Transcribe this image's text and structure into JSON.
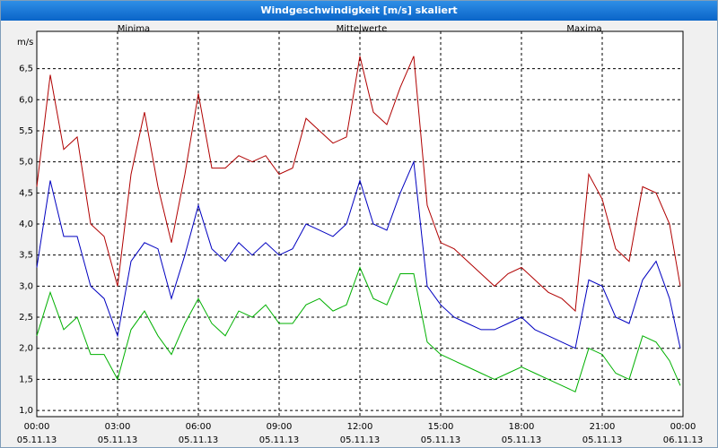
{
  "window": {
    "title": "Windgeschwindigkeit [m/s] skaliert"
  },
  "chart_data": {
    "type": "line",
    "ylabel": "m/s",
    "ylim": [
      0.9,
      7.1
    ],
    "yticks": [
      "1,0",
      "1,5",
      "2,0",
      "2,5",
      "3,0",
      "3,5",
      "4,0",
      "4,5",
      "5,0",
      "5,5",
      "6,0",
      "6,5"
    ],
    "xticks": [
      {
        "time": "00:00",
        "date": "05.11.13"
      },
      {
        "time": "03:00",
        "date": "05.11.13"
      },
      {
        "time": "06:00",
        "date": "05.11.13"
      },
      {
        "time": "09:00",
        "date": "05.11.13"
      },
      {
        "time": "12:00",
        "date": "05.11.13"
      },
      {
        "time": "15:00",
        "date": "05.11.13"
      },
      {
        "time": "18:00",
        "date": "05.11.13"
      },
      {
        "time": "21:00",
        "date": "05.11.13"
      },
      {
        "time": "00:00",
        "date": "06.11.13"
      }
    ],
    "x_hours": [
      0,
      0.5,
      1,
      1.5,
      2,
      2.5,
      3,
      3.5,
      4,
      4.5,
      5,
      5.5,
      6,
      6.5,
      7,
      7.5,
      8,
      8.5,
      9,
      9.5,
      10,
      10.5,
      11,
      11.5,
      12,
      12.5,
      13,
      13.5,
      14,
      14.5,
      15,
      15.5,
      16,
      16.5,
      17,
      17.5,
      18,
      18.5,
      19,
      19.5,
      20,
      20.5,
      21,
      21.5,
      22,
      22.5,
      23,
      23.5,
      23.9
    ],
    "grid": true,
    "series": [
      {
        "name": "Minima",
        "color": "#00b000",
        "values": [
          2.2,
          2.9,
          2.3,
          2.5,
          1.9,
          1.9,
          1.5,
          2.3,
          2.6,
          2.2,
          1.9,
          2.4,
          2.8,
          2.4,
          2.2,
          2.6,
          2.5,
          2.7,
          2.4,
          2.4,
          2.7,
          2.8,
          2.6,
          2.7,
          3.3,
          2.8,
          2.7,
          3.2,
          3.2,
          2.1,
          1.9,
          1.8,
          1.7,
          1.6,
          1.5,
          1.6,
          1.7,
          1.6,
          1.5,
          1.4,
          1.3,
          2.0,
          1.9,
          1.6,
          1.5,
          2.2,
          2.1,
          1.8,
          1.4
        ]
      },
      {
        "name": "Mittelwerte",
        "color": "#0000c0",
        "values": [
          3.3,
          4.7,
          3.8,
          3.8,
          3.0,
          2.8,
          2.2,
          3.4,
          3.7,
          3.6,
          2.8,
          3.5,
          4.3,
          3.6,
          3.4,
          3.7,
          3.5,
          3.7,
          3.5,
          3.6,
          4.0,
          3.9,
          3.8,
          4.0,
          4.7,
          4.0,
          3.9,
          4.5,
          5.0,
          3.0,
          2.7,
          2.5,
          2.4,
          2.3,
          2.3,
          2.4,
          2.5,
          2.3,
          2.2,
          2.1,
          2.0,
          3.1,
          3.0,
          2.5,
          2.4,
          3.1,
          3.4,
          2.8,
          2.0
        ]
      },
      {
        "name": "Maxima",
        "color": "#b00000",
        "values": [
          4.6,
          6.4,
          5.2,
          5.4,
          4.0,
          3.8,
          3.0,
          4.8,
          5.8,
          4.6,
          3.7,
          4.8,
          6.1,
          4.9,
          4.9,
          5.1,
          5.0,
          5.1,
          4.8,
          4.9,
          5.7,
          5.5,
          5.3,
          5.4,
          6.7,
          5.8,
          5.6,
          6.2,
          6.7,
          4.3,
          3.7,
          3.6,
          3.4,
          3.2,
          3.0,
          3.2,
          3.3,
          3.1,
          2.9,
          2.8,
          2.6,
          4.8,
          4.4,
          3.6,
          3.4,
          4.6,
          4.5,
          4.0,
          3.0
        ]
      }
    ]
  }
}
